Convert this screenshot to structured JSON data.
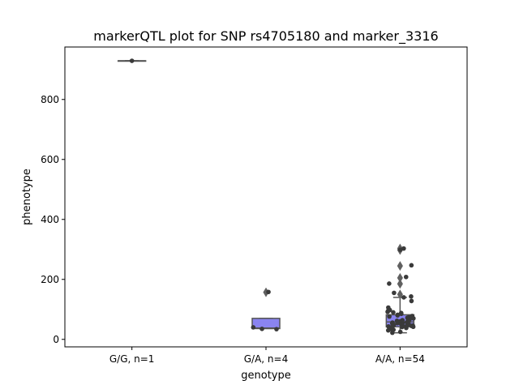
{
  "chart_data": {
    "type": "box",
    "title": "markerQTL plot for SNP rs4705180 and marker_3316",
    "xlabel": "genotype",
    "ylabel": "phenotype",
    "categories": [
      "G/G, n=1",
      "G/A, n=4",
      "A/A, n=54"
    ],
    "ylim": [
      -25,
      975
    ],
    "yticks": [
      0,
      200,
      400,
      600,
      800
    ],
    "grid": false,
    "box_color": "#8a84f0",
    "box_edge_color": "#555555",
    "point_color": "#3a3a3a",
    "boxes": [
      {
        "category": "G/G, n=1",
        "q1": 929,
        "median": 929,
        "q3": 929,
        "whisker_low": 929,
        "whisker_high": 929,
        "outliers": []
      },
      {
        "category": "G/A, n=4",
        "q1": 36,
        "median": 38,
        "q3": 70,
        "whisker_low": 36,
        "whisker_high": 70,
        "outliers": [
          157
        ]
      },
      {
        "category": "A/A, n=54",
        "q1": 42,
        "median": 58,
        "q3": 82,
        "whisker_low": 22,
        "whisker_high": 140,
        "outliers": [
          150,
          185,
          205,
          245,
          298,
          303
        ]
      }
    ],
    "points": [
      {
        "category": "G/G, n=1",
        "values": [
          929
        ]
      },
      {
        "category": "G/A, n=4",
        "values": [
          158,
          40,
          35,
          34
        ]
      },
      {
        "category": "A/A, n=54",
        "values": [
          303,
          299,
          247,
          208,
          186,
          155,
          143,
          140,
          128,
          106,
          98,
          95,
          92,
          90,
          88,
          85,
          82,
          80,
          78,
          76,
          74,
          72,
          70,
          68,
          66,
          64,
          62,
          60,
          58,
          57,
          56,
          55,
          54,
          53,
          52,
          51,
          50,
          49,
          48,
          47,
          46,
          45,
          44,
          43,
          42,
          41,
          40,
          38,
          36,
          34,
          32,
          30,
          25,
          22
        ]
      }
    ]
  }
}
